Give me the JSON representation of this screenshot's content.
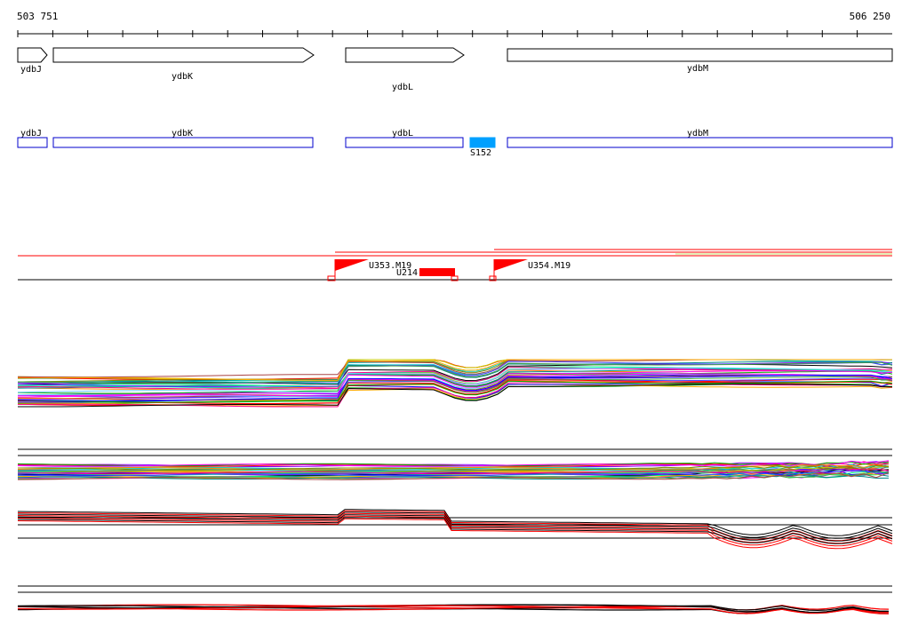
{
  "region": {
    "start": "503 751",
    "end": "506 250"
  },
  "genes": [
    {
      "name": "ydbJ"
    },
    {
      "name": "ydbK"
    },
    {
      "name": "ydbL"
    },
    {
      "name": "ydbM"
    }
  ],
  "annotations": [
    {
      "name": "ydbJ"
    },
    {
      "name": "ydbK"
    },
    {
      "name": "ydbL"
    },
    {
      "name": "ydbM"
    }
  ],
  "features": {
    "s_label": "S152",
    "u_label": "U214"
  },
  "primers": [
    {
      "label": "U353.M19"
    },
    {
      "label": "U354.M19"
    }
  ],
  "colors": {
    "annotation_outline": "#0000cc",
    "s_box": "#00a0ff",
    "feature_red": "#ff0000",
    "track_black": "#000000"
  }
}
